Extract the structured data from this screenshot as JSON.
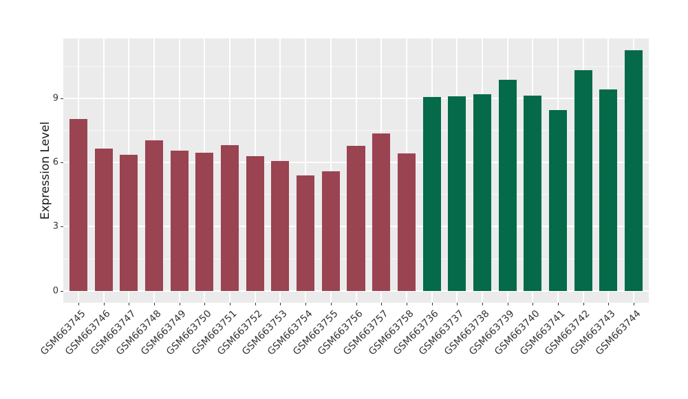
{
  "chart_data": {
    "type": "bar",
    "title": "",
    "xlabel": "",
    "ylabel": "Expression Level",
    "ylim": [
      -0.56,
      11.81
    ],
    "yticks": [
      0,
      3,
      6,
      9
    ],
    "yticks_minor": [
      1.5,
      4.5,
      7.5,
      10.5
    ],
    "grid": "white on gray panel",
    "legend": "none",
    "panel_bg": "#EBEBEB",
    "grid_color": "#FFFFFF",
    "axis_text_color": "#333333",
    "groups": [
      {
        "color": "#9A4351",
        "categories": [
          "GSM663745",
          "GSM663746",
          "GSM663747",
          "GSM663748",
          "GSM663749",
          "GSM663750",
          "GSM663751",
          "GSM663752",
          "GSM663753",
          "GSM663754",
          "GSM663755",
          "GSM663756",
          "GSM663757",
          "GSM663758"
        ],
        "values": [
          8.03,
          6.65,
          6.35,
          7.03,
          6.55,
          6.46,
          6.82,
          6.29,
          6.07,
          5.4,
          5.6,
          6.77,
          7.38,
          6.43
        ]
      },
      {
        "color": "#046A49",
        "categories": [
          "GSM663736",
          "GSM663737",
          "GSM663738",
          "GSM663739",
          "GSM663740",
          "GSM663741",
          "GSM663742",
          "GSM663743",
          "GSM663744"
        ],
        "values": [
          9.07,
          9.11,
          9.19,
          9.87,
          9.13,
          8.47,
          10.32,
          9.42,
          11.25
        ]
      }
    ]
  }
}
